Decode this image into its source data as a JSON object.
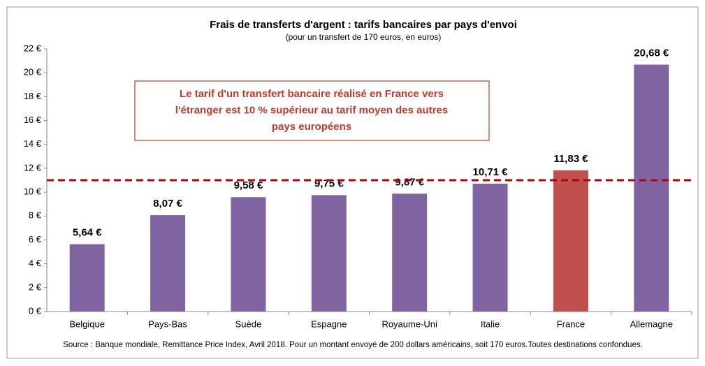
{
  "chart_data": {
    "type": "bar",
    "title": "Frais de transferts d'argent : tarifs bancaires par pays d'envoi",
    "subtitle": "(pour un transfert de 170 euros, en euros)",
    "categories": [
      "Belgique",
      "Pays-Bas",
      "Suède",
      "Espagne",
      "Royaume-Uni",
      "Italie",
      "France",
      "Allemagne"
    ],
    "values": [
      5.64,
      8.07,
      9.58,
      9.75,
      9.87,
      10.71,
      11.83,
      20.68
    ],
    "value_labels": [
      "5,64 €",
      "8,07 €",
      "9,58 €",
      "9,75 €",
      "9,87 €",
      "10,71 €",
      "11,83 €",
      "20,68 €"
    ],
    "colors": [
      "#8064a2",
      "#8064a2",
      "#8064a2",
      "#8064a2",
      "#8064a2",
      "#8064a2",
      "#c0504d",
      "#8064a2"
    ],
    "ylim": [
      0,
      22
    ],
    "yticks": [
      {
        "value": 0,
        "label": "0 €"
      },
      {
        "value": 2,
        "label": "2 €"
      },
      {
        "value": 4,
        "label": "4 €"
      },
      {
        "value": 6,
        "label": "6 €"
      },
      {
        "value": 8,
        "label": "8 €"
      },
      {
        "value": 10,
        "label": "10 €"
      },
      {
        "value": 12,
        "label": "12 €"
      },
      {
        "value": 14,
        "label": "14 €"
      },
      {
        "value": 16,
        "label": "16 €"
      },
      {
        "value": 18,
        "label": "18 €"
      },
      {
        "value": 20,
        "label": "20 €"
      },
      {
        "value": 22,
        "label": "22 €"
      }
    ],
    "reference_line": {
      "value": 11,
      "color": "#c00000"
    },
    "annotation": [
      "Le tarif d'un transfert bancaire réalisé en France vers",
      "l'étranger est 10 % supérieur au tarif moyen des autres",
      "pays européens"
    ],
    "source": "Source : Banque mondiale, Remittance Price Index, Avril 2018. Pour un montant envoyé de 200 dollars américains, soit 170 euros.Toutes destinations confondues."
  }
}
